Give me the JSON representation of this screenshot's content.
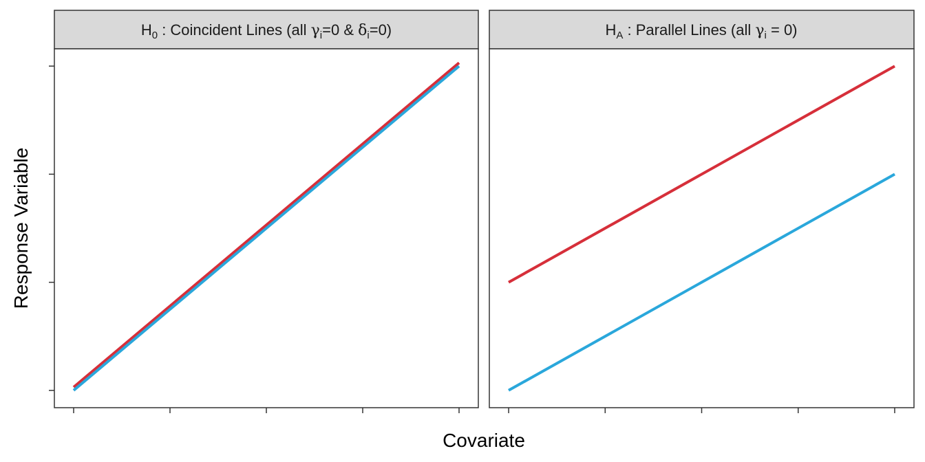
{
  "chart_data": [
    {
      "type": "line",
      "title_parts": {
        "main": "H",
        "sub": "0",
        "text": " : Coincident Lines (all ",
        "gamma": "γ",
        "gamma_sub": "i",
        "mid": "=0 & ",
        "delta": "δ",
        "delta_sub": "i",
        "end": "=0)"
      },
      "x": [
        0,
        4
      ],
      "series": [
        {
          "color": "#d62f3a",
          "values": [
            0.03,
            3.03
          ]
        },
        {
          "color": "#2aa7db",
          "values": [
            0.0,
            3.0
          ]
        }
      ],
      "xlim": [
        -0.2,
        4.2
      ],
      "ylim": [
        -0.16,
        3.16
      ],
      "xticks": [
        0,
        1,
        2,
        3,
        4
      ],
      "yticks": [
        0,
        1,
        2,
        3
      ],
      "tick_labels_shown": false
    },
    {
      "type": "line",
      "title_parts": {
        "main": "H",
        "sub": "A",
        "text": " : Parallel Lines (all ",
        "gamma": "γ",
        "gamma_sub": "i",
        "end": " = 0)"
      },
      "x": [
        0,
        4
      ],
      "series": [
        {
          "color": "#d62f3a",
          "values": [
            1.0,
            3.0
          ]
        },
        {
          "color": "#2aa7db",
          "values": [
            0.0,
            2.0
          ]
        }
      ],
      "xlim": [
        -0.2,
        4.2
      ],
      "ylim": [
        -0.16,
        3.16
      ],
      "xticks": [
        0,
        1,
        2,
        3,
        4
      ],
      "yticks": [
        0,
        1,
        2,
        3
      ],
      "tick_labels_shown": false
    }
  ],
  "xlabel": "Covariate",
  "ylabel": "Response Variable",
  "colors": {
    "strip_bg": "#d9d9d9",
    "panel_border": "#333333",
    "red": "#d62f3a",
    "blue": "#2aa7db"
  }
}
